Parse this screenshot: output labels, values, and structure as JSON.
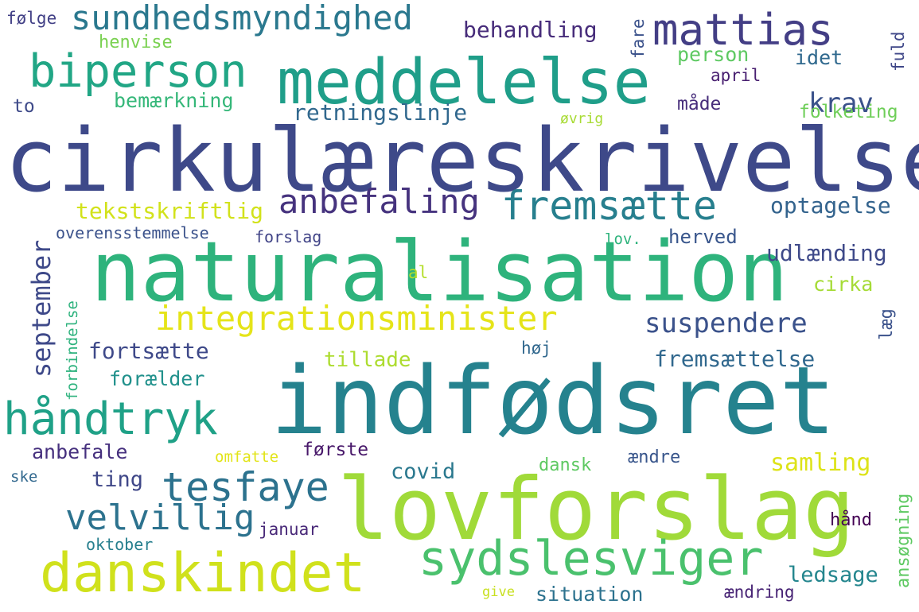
{
  "words": [
    {
      "text": "cirkulæreskrivelse",
      "color": "#3e4989"
    },
    {
      "text": "naturalisation",
      "color": "#2eb37c"
    },
    {
      "text": "indfødsret",
      "color": "#25828e"
    },
    {
      "text": "lovforslag",
      "color": "#a0da39"
    },
    {
      "text": "meddelelse",
      "color": "#1f9e89"
    },
    {
      "text": "biperson",
      "color": "#21a685"
    },
    {
      "text": "mattias",
      "color": "#433e85"
    },
    {
      "text": "sundhedsmyndighed",
      "color": "#2a788e"
    },
    {
      "text": "danskindet",
      "color": "#d0e11c"
    },
    {
      "text": "sydslesviger",
      "color": "#4ac16d"
    },
    {
      "text": "håndtryk",
      "color": "#1fa187"
    },
    {
      "text": "tesfaye",
      "color": "#2c728e"
    },
    {
      "text": "integrationsminister",
      "color": "#e5e419"
    },
    {
      "text": "fremsætte",
      "color": "#277f8e"
    },
    {
      "text": "anbefaling",
      "color": "#46337e"
    },
    {
      "text": "velvillig",
      "color": "#2c728e"
    },
    {
      "text": "suspendere",
      "color": "#3b528b"
    },
    {
      "text": "krav",
      "color": "#3b528b"
    },
    {
      "text": "september",
      "color": "#3e4989"
    },
    {
      "text": "behandling",
      "color": "#472c7a"
    },
    {
      "text": "retningslinje",
      "color": "#31688e"
    },
    {
      "text": "tekstskriftlig",
      "color": "#d2e21b"
    },
    {
      "text": "udlænding",
      "color": "#3e4989"
    },
    {
      "text": "optagelse",
      "color": "#33638d"
    },
    {
      "text": "fortsætte",
      "color": "#3e4989"
    },
    {
      "text": "fremsættelse",
      "color": "#31688e"
    },
    {
      "text": "samling",
      "color": "#dde318"
    },
    {
      "text": "bemærkning",
      "color": "#35b779"
    },
    {
      "text": "person",
      "color": "#5ec962"
    },
    {
      "text": "idet",
      "color": "#30698e"
    },
    {
      "text": "april",
      "color": "#481f70"
    },
    {
      "text": "måde",
      "color": "#472d7b"
    },
    {
      "text": "henvise",
      "color": "#7ad151"
    },
    {
      "text": "følge",
      "color": "#424086"
    },
    {
      "text": "to",
      "color": "#3e4a89"
    },
    {
      "text": "fare",
      "color": "#3b528b"
    },
    {
      "text": "fuld",
      "color": "#3f4788"
    },
    {
      "text": "folketing",
      "color": "#6ece58"
    },
    {
      "text": "øvrig",
      "color": "#a8db34"
    },
    {
      "text": "overensstemmelse",
      "color": "#3b528b"
    },
    {
      "text": "forslag",
      "color": "#414487"
    },
    {
      "text": "lov.",
      "color": "#2eb37c"
    },
    {
      "text": "herved",
      "color": "#39568c"
    },
    {
      "text": "al",
      "color": "#b5de2b"
    },
    {
      "text": "cirka",
      "color": "#a5db36"
    },
    {
      "text": "læg",
      "color": "#3b528b"
    },
    {
      "text": "forbindelse",
      "color": "#2db27d"
    },
    {
      "text": "tillade",
      "color": "#addc30"
    },
    {
      "text": "høj",
      "color": "#31688e"
    },
    {
      "text": "forælder",
      "color": "#21918c"
    },
    {
      "text": "anbefale",
      "color": "#46307e"
    },
    {
      "text": "første",
      "color": "#48186a"
    },
    {
      "text": "omfatte",
      "color": "#e2e418"
    },
    {
      "text": "dansk",
      "color": "#5ec962"
    },
    {
      "text": "ændre",
      "color": "#39568c"
    },
    {
      "text": "ting",
      "color": "#3f4788"
    },
    {
      "text": "covid",
      "color": "#2a788e"
    },
    {
      "text": "ske",
      "color": "#31688e"
    },
    {
      "text": "ansøgning",
      "color": "#5ec962"
    },
    {
      "text": "januar",
      "color": "#482878"
    },
    {
      "text": "oktober",
      "color": "#277f8e"
    },
    {
      "text": "hånd",
      "color": "#440154"
    },
    {
      "text": "ledsage",
      "color": "#24868e"
    },
    {
      "text": "give",
      "color": "#c8e020"
    },
    {
      "text": "situation",
      "color": "#2c728e"
    },
    {
      "text": "ændring",
      "color": "#482475"
    }
  ]
}
